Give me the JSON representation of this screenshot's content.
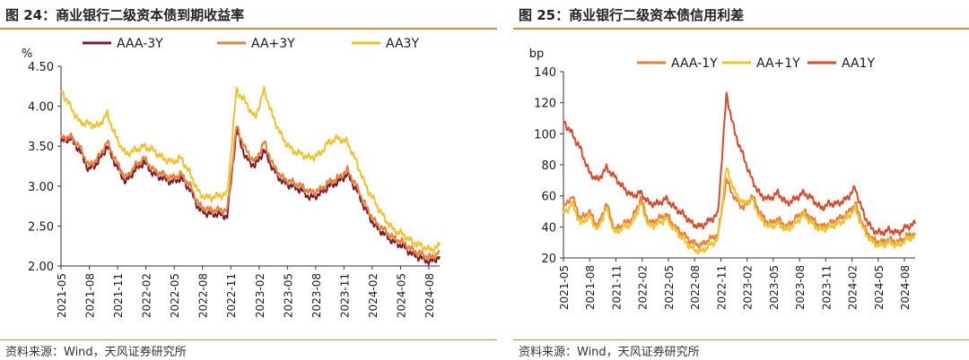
{
  "charts_meta": {
    "left_title": "图 24：商业银行二级资本债到期收益率",
    "right_title": "图 25：商业银行二级资本债信用利差",
    "source_left": "资料来源：Wind，天风证券研究所",
    "source_right": "资料来源：Wind，天风证券研究所"
  },
  "chart_data": [
    {
      "type": "line",
      "title": "图 24：商业银行二级资本债到期收益率",
      "ylabel": "%",
      "ylim": [
        2.0,
        4.5
      ],
      "yticks": [
        "4.50",
        "4.00",
        "3.50",
        "3.00",
        "2.50",
        "2.00"
      ],
      "xticks": [
        "2021-05",
        "2021-08",
        "2021-11",
        "2022-02",
        "2022-05",
        "2022-08",
        "2022-11",
        "2023-02",
        "2023-05",
        "2023-08",
        "2023-11",
        "2024-02",
        "2024-05",
        "2024-08"
      ],
      "x": [
        "2021-05",
        "2021-06",
        "2021-07",
        "2021-08",
        "2021-09",
        "2021-10",
        "2021-11",
        "2021-12",
        "2022-01",
        "2022-02",
        "2022-03",
        "2022-04",
        "2022-05",
        "2022-06",
        "2022-07",
        "2022-08",
        "2022-09",
        "2022-10",
        "2022-11",
        "2022-11b",
        "2022-12",
        "2023-01",
        "2023-02",
        "2023-03",
        "2023-04",
        "2023-05",
        "2023-06",
        "2023-07",
        "2023-08",
        "2023-09",
        "2023-10",
        "2023-11",
        "2023-12",
        "2024-01",
        "2024-02",
        "2024-03",
        "2024-04",
        "2024-05",
        "2024-06",
        "2024-07",
        "2024-08",
        "2024-09"
      ],
      "legend_position": "top",
      "series": [
        {
          "name": "AAA-3Y",
          "color": "#7b1c2e",
          "values": [
            3.55,
            3.6,
            3.45,
            3.2,
            3.3,
            3.5,
            3.25,
            3.05,
            3.2,
            3.3,
            3.15,
            3.1,
            3.05,
            3.1,
            2.95,
            2.7,
            2.65,
            2.65,
            2.62,
            3.7,
            3.35,
            3.25,
            3.45,
            3.2,
            3.05,
            3.0,
            2.95,
            2.85,
            2.9,
            3.0,
            3.05,
            3.15,
            2.95,
            2.7,
            2.5,
            2.4,
            2.3,
            2.25,
            2.15,
            2.1,
            2.05,
            2.12
          ]
        },
        {
          "name": "AA+3Y",
          "color": "#e8803a",
          "values": [
            3.6,
            3.62,
            3.5,
            3.25,
            3.35,
            3.55,
            3.3,
            3.1,
            3.25,
            3.35,
            3.2,
            3.15,
            3.1,
            3.15,
            3.0,
            2.75,
            2.7,
            2.7,
            2.7,
            3.75,
            3.45,
            3.3,
            3.55,
            3.25,
            3.1,
            3.05,
            3.0,
            2.92,
            2.95,
            3.05,
            3.1,
            3.2,
            3.0,
            2.75,
            2.55,
            2.45,
            2.35,
            2.3,
            2.2,
            2.15,
            2.1,
            2.18
          ]
        },
        {
          "name": "AA3Y",
          "color": "#f2c12e",
          "values": [
            4.2,
            4.0,
            3.8,
            3.78,
            3.75,
            3.9,
            3.6,
            3.4,
            3.45,
            3.5,
            3.45,
            3.35,
            3.3,
            3.35,
            3.15,
            2.9,
            2.85,
            2.88,
            2.9,
            4.2,
            4.05,
            3.85,
            4.2,
            3.85,
            3.6,
            3.45,
            3.4,
            3.35,
            3.4,
            3.55,
            3.6,
            3.55,
            3.3,
            3.0,
            2.8,
            2.6,
            2.45,
            2.4,
            2.3,
            2.25,
            2.2,
            2.25
          ]
        }
      ]
    },
    {
      "type": "line",
      "title": "图 25：商业银行二级资本债信用利差",
      "ylabel": "bp",
      "ylim": [
        20,
        140
      ],
      "yticks": [
        "140",
        "120",
        "100",
        "80",
        "60",
        "40",
        "20"
      ],
      "xticks": [
        "2021-05",
        "2021-08",
        "2021-11",
        "2022-02",
        "2022-05",
        "2022-08",
        "2022-11",
        "2023-02",
        "2023-05",
        "2023-08",
        "2023-11",
        "2024-02",
        "2024-05",
        "2024-08"
      ],
      "x": [
        "2021-05",
        "2021-06",
        "2021-07",
        "2021-08",
        "2021-09",
        "2021-10",
        "2021-11",
        "2021-12",
        "2022-01",
        "2022-02",
        "2022-03",
        "2022-04",
        "2022-05",
        "2022-06",
        "2022-07",
        "2022-08",
        "2022-09",
        "2022-10",
        "2022-11",
        "2022-11b",
        "2022-12",
        "2023-01",
        "2023-02",
        "2023-03",
        "2023-04",
        "2023-05",
        "2023-06",
        "2023-07",
        "2023-08",
        "2023-09",
        "2023-10",
        "2023-11",
        "2023-12",
        "2024-01",
        "2024-02",
        "2024-03",
        "2024-04",
        "2024-05",
        "2024-06",
        "2024-07",
        "2024-08",
        "2024-09"
      ],
      "legend_position": "top",
      "series": [
        {
          "name": "AAA-1Y",
          "color": "#e8803a",
          "values": [
            52,
            60,
            45,
            50,
            40,
            55,
            38,
            42,
            45,
            58,
            42,
            45,
            48,
            40,
            35,
            30,
            28,
            32,
            35,
            70,
            58,
            52,
            60,
            48,
            42,
            45,
            40,
            45,
            50,
            45,
            40,
            42,
            45,
            48,
            55,
            40,
            32,
            30,
            32,
            30,
            34,
            36
          ]
        },
        {
          "name": "AA+1Y",
          "color": "#f2c12e",
          "values": [
            48,
            55,
            42,
            47,
            38,
            52,
            36,
            40,
            42,
            55,
            40,
            42,
            45,
            38,
            32,
            26,
            24,
            28,
            32,
            78,
            62,
            55,
            58,
            45,
            40,
            42,
            38,
            42,
            48,
            42,
            38,
            40,
            42,
            45,
            52,
            38,
            30,
            28,
            30,
            28,
            32,
            34
          ]
        },
        {
          "name": "AA1Y",
          "color": "#d94a2b",
          "values": [
            108,
            100,
            90,
            75,
            70,
            78,
            72,
            65,
            60,
            62,
            55,
            55,
            58,
            52,
            48,
            42,
            40,
            44,
            48,
            125,
            100,
            85,
            70,
            60,
            58,
            62,
            55,
            58,
            62,
            58,
            52,
            55,
            55,
            58,
            65,
            48,
            38,
            36,
            38,
            36,
            40,
            42
          ]
        }
      ]
    }
  ]
}
